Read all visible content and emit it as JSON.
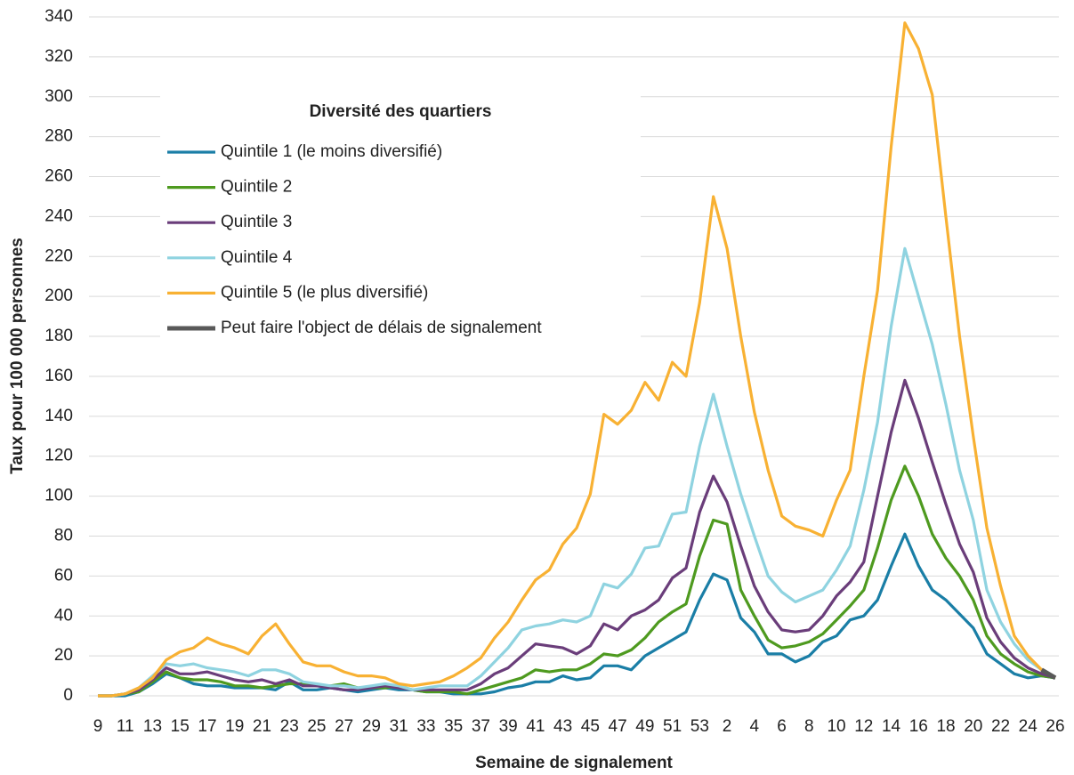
{
  "chart_data": {
    "type": "line",
    "y_label": "Taux pour 100 000 personnes",
    "x_label": "Semaine de signalement",
    "legend_title": "Diversité des quartiers",
    "legend": "upper left",
    "grid": true,
    "categories": [
      "9",
      null,
      "11",
      null,
      "13",
      null,
      "15",
      null,
      "17",
      null,
      "19",
      null,
      "21",
      null,
      "23",
      null,
      "25",
      null,
      "27",
      null,
      "29",
      null,
      "31",
      null,
      "33",
      null,
      "35",
      null,
      "37",
      null,
      "39",
      null,
      "41",
      null,
      "43",
      null,
      "45",
      null,
      "47",
      null,
      "49",
      null,
      "51",
      null,
      "53",
      null,
      "2",
      null,
      "4",
      null,
      "6",
      null,
      "8",
      null,
      "10",
      null,
      "12",
      null,
      "14",
      null,
      "16",
      null,
      "18",
      null,
      "20",
      null,
      "22",
      null,
      "24",
      null,
      "26"
    ],
    "ylim": [
      0,
      340
    ],
    "yticks": [
      0,
      20,
      40,
      60,
      80,
      100,
      120,
      140,
      160,
      180,
      200,
      220,
      240,
      260,
      280,
      300,
      320,
      340
    ],
    "series": [
      {
        "name": "Quintile 1 (le moins diversifié)",
        "color": "#1a7ea6",
        "values": [
          0,
          0,
          0,
          2,
          6,
          11,
          9,
          6,
          5,
          5,
          4,
          4,
          4,
          3,
          7,
          3,
          3,
          4,
          3,
          2,
          3,
          4,
          3,
          3,
          2,
          2,
          1,
          1,
          1,
          2,
          4,
          5,
          7,
          7,
          10,
          8,
          9,
          15,
          15,
          13,
          20,
          24,
          28,
          32,
          48,
          61,
          58,
          39,
          32,
          21,
          21,
          17,
          20,
          27,
          30,
          38,
          40,
          48,
          65,
          81,
          65,
          53,
          48,
          41,
          34,
          21,
          16,
          11,
          9,
          10,
          9
        ]
      },
      {
        "name": "Quintile 2",
        "color": "#4e9a1f",
        "values": [
          0,
          0,
          1,
          2,
          7,
          12,
          9,
          8,
          8,
          7,
          5,
          5,
          4,
          5,
          6,
          6,
          5,
          5,
          6,
          4,
          4,
          4,
          5,
          3,
          2,
          2,
          2,
          1,
          3,
          5,
          7,
          9,
          13,
          12,
          13,
          13,
          16,
          21,
          20,
          23,
          29,
          37,
          42,
          46,
          70,
          88,
          86,
          53,
          40,
          28,
          24,
          25,
          27,
          31,
          38,
          45,
          53,
          74,
          98,
          115,
          100,
          81,
          69,
          60,
          48,
          30,
          21,
          16,
          12,
          10,
          9
        ]
      },
      {
        "name": "Quintile 3",
        "color": "#6a3d7a",
        "values": [
          0,
          0,
          1,
          3,
          8,
          14,
          11,
          11,
          12,
          10,
          8,
          7,
          8,
          6,
          8,
          5,
          5,
          4,
          3,
          3,
          4,
          5,
          4,
          3,
          3,
          3,
          3,
          3,
          6,
          11,
          14,
          20,
          26,
          25,
          24,
          21,
          25,
          36,
          33,
          40,
          43,
          48,
          59,
          64,
          92,
          110,
          97,
          75,
          55,
          42,
          33,
          32,
          33,
          40,
          50,
          57,
          67,
          100,
          132,
          158,
          139,
          117,
          96,
          76,
          62,
          39,
          27,
          19,
          14,
          11,
          9
        ]
      },
      {
        "name": "Quintile 4",
        "color": "#8fd3e0",
        "values": [
          0,
          0,
          1,
          4,
          10,
          16,
          15,
          16,
          14,
          13,
          12,
          10,
          13,
          13,
          11,
          7,
          6,
          5,
          5,
          4,
          5,
          6,
          5,
          3,
          4,
          5,
          5,
          5,
          10,
          17,
          24,
          33,
          35,
          36,
          38,
          37,
          40,
          56,
          54,
          61,
          74,
          75,
          91,
          92,
          125,
          151,
          125,
          101,
          80,
          60,
          52,
          47,
          50,
          53,
          63,
          75,
          103,
          137,
          185,
          224,
          200,
          176,
          146,
          113,
          88,
          53,
          37,
          26,
          18,
          13,
          9
        ]
      },
      {
        "name": "Quintile 5 (le plus diversifié)",
        "color": "#f8b133",
        "values": [
          0,
          0,
          1,
          4,
          9,
          18,
          22,
          24,
          29,
          26,
          24,
          21,
          30,
          36,
          26,
          17,
          15,
          15,
          12,
          10,
          10,
          9,
          6,
          5,
          6,
          7,
          10,
          14,
          19,
          29,
          37,
          48,
          58,
          63,
          76,
          84,
          101,
          141,
          136,
          143,
          157,
          148,
          167,
          160,
          197,
          250,
          224,
          180,
          142,
          113,
          90,
          85,
          83,
          80,
          98,
          113,
          160,
          203,
          275,
          337,
          324,
          301,
          240,
          180,
          130,
          84,
          55,
          30,
          20,
          13,
          9
        ]
      },
      {
        "name": "Peut faire l'object de délais de signalement",
        "color": "#595959",
        "values": [
          null,
          null,
          null,
          null,
          null,
          null,
          null,
          null,
          null,
          null,
          null,
          null,
          null,
          null,
          null,
          null,
          null,
          null,
          null,
          null,
          null,
          null,
          null,
          null,
          null,
          null,
          null,
          null,
          null,
          null,
          null,
          null,
          null,
          null,
          null,
          null,
          null,
          null,
          null,
          null,
          null,
          null,
          null,
          null,
          null,
          null,
          null,
          null,
          null,
          null,
          null,
          null,
          null,
          null,
          null,
          null,
          null,
          null,
          null,
          null,
          null,
          null,
          null,
          null,
          null,
          null,
          null,
          null,
          null,
          13,
          9
        ]
      }
    ]
  }
}
